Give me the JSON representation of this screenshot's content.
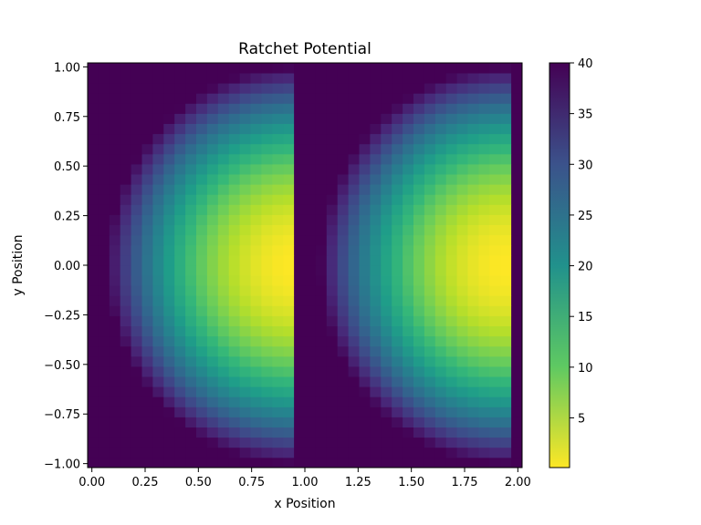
{
  "chart_data": {
    "type": "heatmap",
    "title": "Ratchet Potential",
    "xlabel": "x Position",
    "ylabel": "y Position",
    "xlim": [
      -0.02,
      2.02
    ],
    "ylim": [
      -1.02,
      1.02
    ],
    "x_ticks": [
      "0.00",
      "0.25",
      "0.50",
      "0.75",
      "1.00",
      "1.25",
      "1.50",
      "1.75",
      "2.00"
    ],
    "x_tick_values": [
      0,
      0.25,
      0.5,
      0.75,
      1.0,
      1.25,
      1.5,
      1.75,
      2.0
    ],
    "y_ticks": [
      "1.00",
      "0.75",
      "0.50",
      "0.25",
      "0.00",
      "−0.25",
      "−0.50",
      "−0.75",
      "−1.00"
    ],
    "y_tick_values": [
      1.0,
      0.75,
      0.5,
      0.25,
      0.0,
      -0.25,
      -0.5,
      -0.75,
      -1.0
    ],
    "grid": false,
    "colormap": "viridis_r",
    "colorbar": {
      "vmin": 0.1,
      "vmax": 40,
      "ticks": [
        "40",
        "35",
        "30",
        "25",
        "20",
        "15",
        "10",
        "5"
      ],
      "tick_values": [
        40,
        35,
        30,
        25,
        20,
        15,
        10,
        5
      ]
    },
    "grid_size": {
      "nx": 40,
      "ny": 40
    },
    "field": {
      "description_units": "potential value per cell",
      "period": 1.0,
      "peak_x_in_period": 0.95,
      "min_value": 0.1,
      "max_value": 40
    }
  }
}
